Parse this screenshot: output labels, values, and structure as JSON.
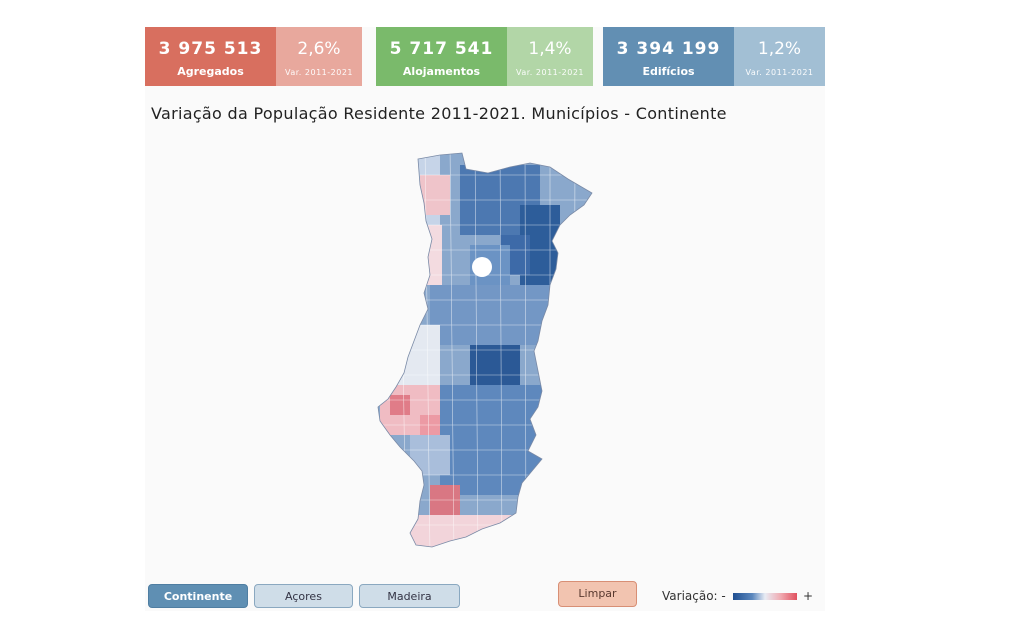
{
  "kpis": [
    {
      "value": "3 975 513",
      "label": "Agregados",
      "variation": "2,6%",
      "variation_label": "Var. 2011-2021",
      "color": "#d86f5f",
      "color_light": "#e8a89d"
    },
    {
      "value": "5 717 541",
      "label": "Alojamentos",
      "variation": "1,4%",
      "variation_label": "Var. 2011-2021",
      "color": "#7aba6b",
      "color_light": "#b2d6a7"
    },
    {
      "value": "3 394 199",
      "label": "Edifícios",
      "variation": "1,2%",
      "variation_label": "Var. 2011-2021",
      "color": "#628fb3",
      "color_light": "#a2bfd4"
    }
  ],
  "map": {
    "title": "Variação da População Residente 2011-2021. Municípios - Continente",
    "color_scale": {
      "negative": "#1f4f91",
      "neutral": "#e8ecf4",
      "positive": "#e0505e"
    }
  },
  "region_buttons": [
    {
      "label": "Continente",
      "active": true
    },
    {
      "label": "Açores",
      "active": false
    },
    {
      "label": "Madeira",
      "active": false
    }
  ],
  "clear_button": "Limpar",
  "legend": {
    "label": "Variação: -",
    "plus": "+"
  }
}
